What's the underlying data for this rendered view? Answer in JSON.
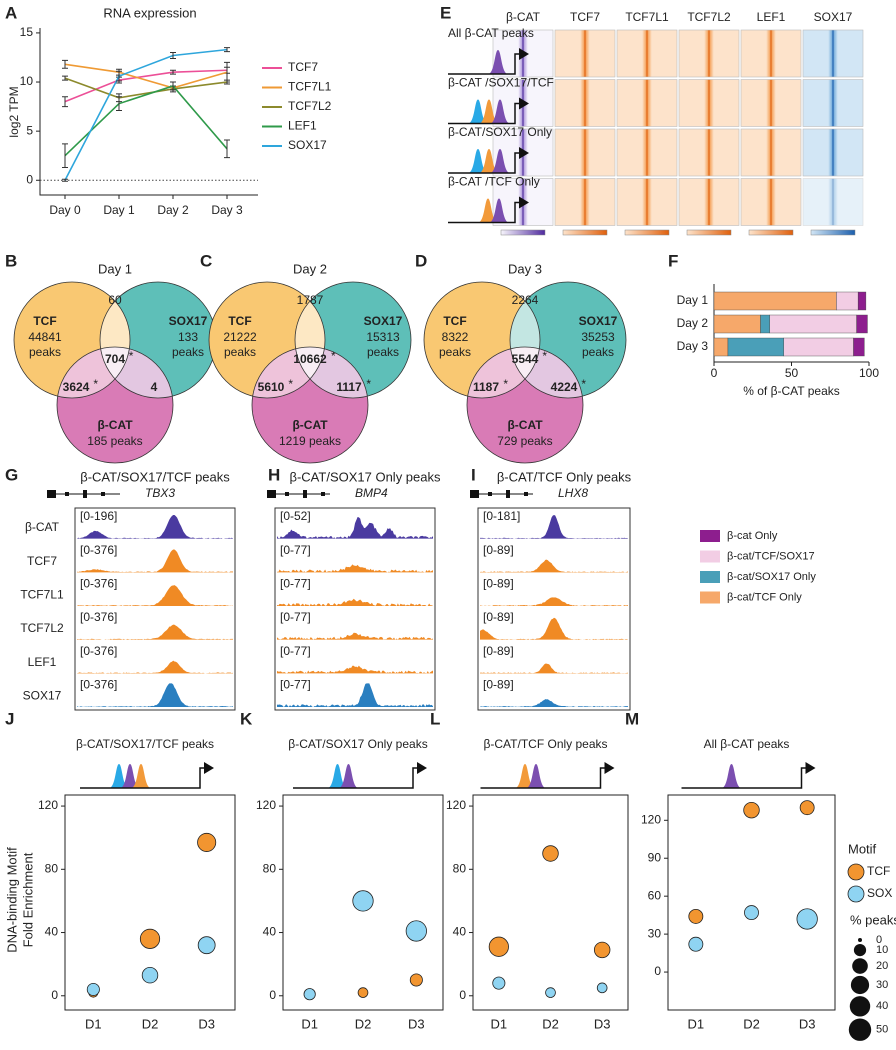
{
  "chart_data": [
    {
      "type": "line",
      "panel": "A",
      "title": "RNA expression",
      "ylabel": "log2 TPM",
      "categories": [
        "Day 0",
        "Day 1",
        "Day 2",
        "Day 3"
      ],
      "ylim": [
        -1.5,
        15.5
      ],
      "yticks": [
        0,
        5,
        10,
        15
      ],
      "series": [
        {
          "name": "TCF7",
          "color": "#ec4f97",
          "values": [
            8,
            10.2,
            11,
            11.2
          ],
          "errors": [
            0.5,
            0.3,
            0.2,
            0.3
          ]
        },
        {
          "name": "TCF7L1",
          "color": "#ef9a34",
          "values": [
            11.8,
            11,
            9.4,
            11
          ],
          "errors": [
            0.4,
            0.3,
            0.2,
            1
          ]
        },
        {
          "name": "TCF7L2",
          "color": "#8c8a2c",
          "values": [
            10.4,
            8.4,
            9.3,
            10
          ],
          "errors": [
            0.2,
            0.4,
            0.3,
            0.2
          ]
        },
        {
          "name": "LEF1",
          "color": "#2f9a4a",
          "values": [
            2.5,
            7.8,
            9.6,
            3.2
          ],
          "errors": [
            1.2,
            0.7,
            0.4,
            0.9
          ]
        },
        {
          "name": "SOX17",
          "color": "#2ea6dc",
          "values": [
            0,
            10.6,
            12.7,
            13.3
          ],
          "errors": [
            0.1,
            0.5,
            0.3,
            0.2
          ]
        }
      ]
    },
    {
      "type": "bar",
      "orientation": "horizontal",
      "panel": "F",
      "xlabel": "% of β-CAT peaks",
      "categories": [
        "Day 1",
        "Day 2",
        "Day 3"
      ],
      "xlim": [
        0,
        100
      ],
      "xticks": [
        0,
        50,
        100
      ],
      "series": [
        {
          "name": "β-cat/TCF Only",
          "color": "#f6a86a",
          "values": [
            79,
            30,
            9
          ]
        },
        {
          "name": "β-cat/SOX17 Only",
          "color": "#4a9fb8",
          "values": [
            0,
            6,
            36
          ]
        },
        {
          "name": "β-cat/TCF/SOX17",
          "color": "#f2cde4",
          "values": [
            14,
            56,
            45
          ]
        },
        {
          "name": "β-cat  Only",
          "color": "#8d1e8e",
          "values": [
            5,
            7,
            7
          ]
        }
      ]
    },
    {
      "type": "scatter",
      "panel": "J",
      "title": "β-CAT/SOX17/TCF peaks",
      "ylabel": [
        "DNA-binding Motif",
        "Fold Enrichment"
      ],
      "categories": [
        "D1",
        "D2",
        "D3"
      ],
      "ylim": [
        -9,
        127
      ],
      "yticks": [
        0,
        40,
        80,
        120
      ],
      "series": [
        {
          "color": "#f29530",
          "values": [
            2,
            36,
            97
          ],
          "sizes": [
            4,
            35,
            30
          ]
        },
        {
          "color": "#8fd4f2",
          "values": [
            4,
            13,
            32
          ],
          "sizes": [
            10,
            20,
            25
          ]
        }
      ]
    },
    {
      "type": "scatter",
      "panel": "K",
      "title": "β-CAT/SOX17 Only peaks",
      "categories": [
        "D1",
        "D2",
        "D3"
      ],
      "ylim": [
        -9,
        127
      ],
      "yticks": [
        0,
        40,
        80,
        120
      ],
      "series": [
        {
          "color": "#f29530",
          "values": [
            1,
            2,
            10
          ],
          "sizes": [
            3,
            5,
            10
          ]
        },
        {
          "color": "#8fd4f2",
          "values": [
            1,
            60,
            41
          ],
          "sizes": [
            8,
            40,
            40
          ]
        }
      ]
    },
    {
      "type": "scatter",
      "panel": "L",
      "title": "β-CAT/TCF Only peaks",
      "categories": [
        "D1",
        "D2",
        "D3"
      ],
      "ylim": [
        -9,
        127
      ],
      "yticks": [
        0,
        40,
        80,
        120
      ],
      "series": [
        {
          "color": "#f29530",
          "values": [
            31,
            90,
            29
          ],
          "sizes": [
            35,
            20,
            20
          ]
        },
        {
          "color": "#8fd4f2",
          "values": [
            8,
            2,
            5
          ],
          "sizes": [
            10,
            5,
            5
          ]
        }
      ]
    },
    {
      "type": "scatter",
      "panel": "M",
      "title": "All β-CAT peaks",
      "categories": [
        "D1",
        "D2",
        "D3"
      ],
      "ylim": [
        -30,
        140
      ],
      "yticks": [
        0,
        30,
        60,
        90,
        120
      ],
      "legend_title": "Motif",
      "series": [
        {
          "name": "TCF",
          "color": "#f29530",
          "values": [
            44,
            128,
            130
          ],
          "sizes": [
            15,
            20,
            15
          ]
        },
        {
          "name": "SOX",
          "color": "#8fd4f2",
          "values": [
            22,
            47,
            42
          ],
          "sizes": [
            15,
            15,
            40
          ]
        }
      ],
      "size_legend": {
        "title": "% peaks",
        "values": [
          0,
          10,
          20,
          30,
          40,
          50
        ]
      }
    }
  ],
  "heatmap": {
    "panel": "E",
    "columns": [
      "β-CAT",
      "TCF7",
      "TCF7L1",
      "TCF7L2",
      "LEF1",
      "SOX17"
    ],
    "rows": [
      "All β-CAT peaks",
      "β-CAT /SOX17/TCF",
      "β-CAT/SOX17 Only",
      "β-CAT /TCF Only"
    ]
  },
  "venns": [
    {
      "panel": "B",
      "title": "Day 1",
      "sets": [
        {
          "label": "TCF",
          "lines": [
            "44841",
            "peaks"
          ]
        },
        {
          "label": "SOX17",
          "lines": [
            "133",
            "peaks"
          ]
        },
        {
          "label": "β-CAT",
          "lines": [
            "185 peaks"
          ]
        }
      ],
      "regions": [
        {
          "text": "60"
        },
        {
          "text": "704",
          "star": "*"
        },
        {
          "text": "3624",
          "star": "*"
        },
        {
          "text": "4"
        }
      ]
    },
    {
      "panel": "C",
      "title": "Day 2",
      "sets": [
        {
          "label": "TCF",
          "lines": [
            "21222",
            "peaks"
          ]
        },
        {
          "label": "SOX17",
          "lines": [
            "15313",
            "peaks"
          ]
        },
        {
          "label": "β-CAT",
          "lines": [
            "1219 peaks"
          ]
        }
      ],
      "regions": [
        {
          "text": "1787"
        },
        {
          "text": "10662",
          "star": "*"
        },
        {
          "text": "5610",
          "star": "*"
        },
        {
          "text": "1117",
          "star": "*"
        }
      ]
    },
    {
      "panel": "D",
      "title": "Day 3",
      "sets": [
        {
          "label": "TCF",
          "lines": [
            "8322",
            "peaks"
          ]
        },
        {
          "label": "SOX17",
          "lines": [
            "35253",
            "peaks"
          ]
        },
        {
          "label": "β-CAT",
          "lines": [
            "729 peaks"
          ]
        }
      ],
      "regions": [
        {
          "text": "2264"
        },
        {
          "text": "5544",
          "star": "*"
        },
        {
          "text": "1187",
          "star": "*"
        },
        {
          "text": "4224",
          "star": "*"
        }
      ]
    }
  ],
  "tracks": [
    {
      "panel": "G",
      "title": "β-CAT/SOX17/TCF peaks",
      "gene": "TBX3",
      "labels": [
        "β-CAT",
        "TCF7",
        "TCF7L1",
        "TCF7L2",
        "LEF1",
        "SOX17"
      ],
      "ranges": [
        "[0-196]",
        "[0-376]",
        "[0-376]",
        "[0-376]",
        "[0-376]",
        "[0-376]"
      ]
    },
    {
      "panel": "H",
      "title": "β-CAT/SOX17 Only peaks",
      "gene": "BMP4",
      "ranges": [
        "[0-52]",
        "[0-77]",
        "[0-77]",
        "[0-77]",
        "[0-77]",
        "[0-77]"
      ]
    },
    {
      "panel": "I",
      "title": "β-CAT/TCF Only peaks",
      "gene": "LHX8",
      "ranges": [
        "[0-181]",
        "[0-89]",
        "[0-89]",
        "[0-89]",
        "[0-89]",
        "[0-89]"
      ]
    }
  ]
}
